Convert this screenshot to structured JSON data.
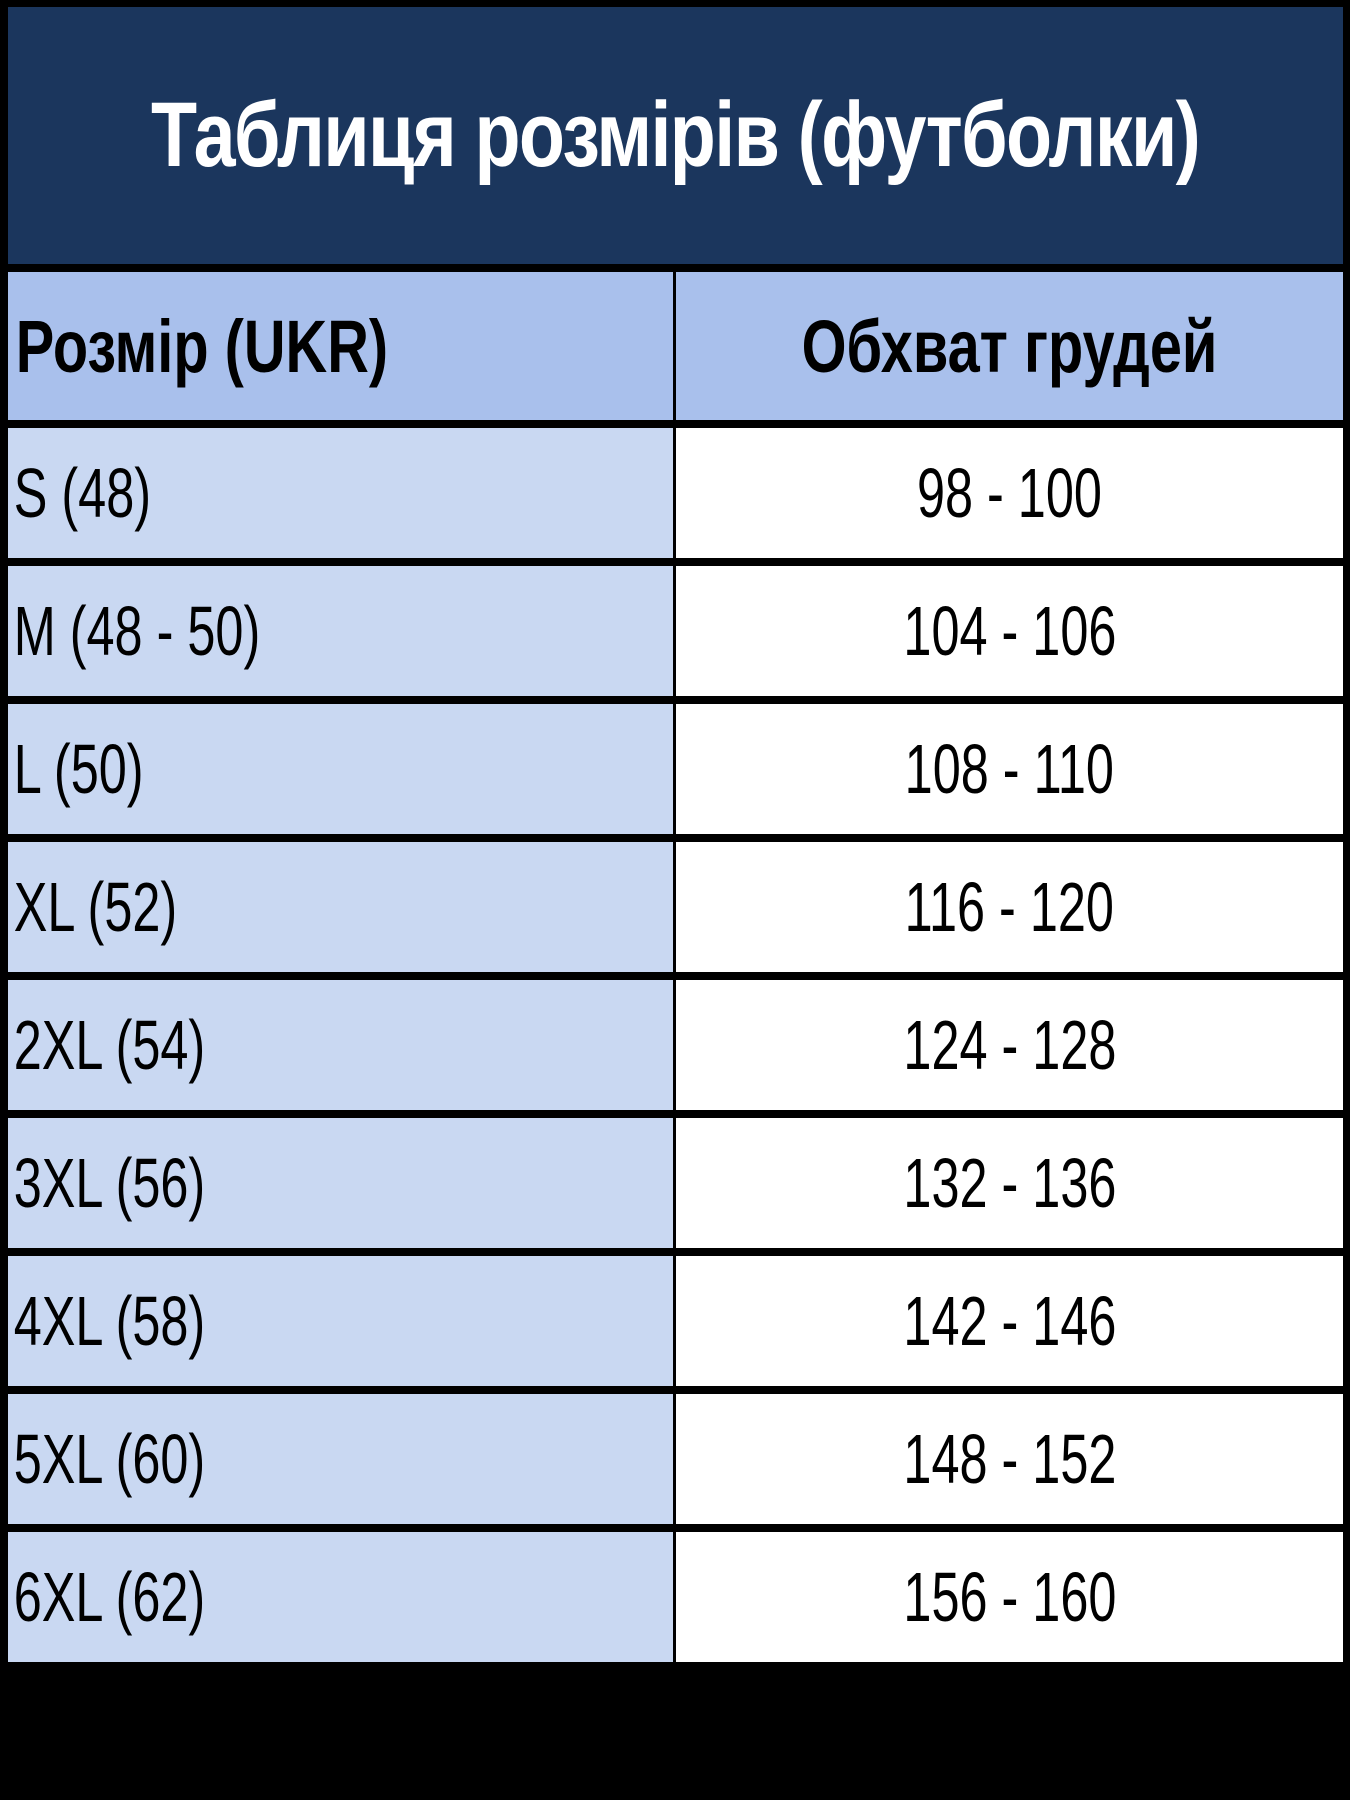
{
  "title": "Таблиця розмірів (футболки)",
  "colors": {
    "title_bg": "#1b365d",
    "header_bg": "#a9c0ec",
    "size_col_bg": "#c9d8f2",
    "value_col_bg": "#ffffff"
  },
  "columns": [
    "Розмір (UKR)",
    "Обхват грудей"
  ],
  "rows": [
    {
      "size": "S (48)",
      "chest": "98 - 100"
    },
    {
      "size": "M (48 - 50)",
      "chest": "104 - 106"
    },
    {
      "size": "L (50)",
      "chest": "108 - 110"
    },
    {
      "size": "XL (52)",
      "chest": "116 - 120"
    },
    {
      "size": "2XL (54)",
      "chest": "124 - 128"
    },
    {
      "size": "3XL (56)",
      "chest": "132 - 136"
    },
    {
      "size": "4XL (58)",
      "chest": "142 - 146"
    },
    {
      "size": "5XL (60)",
      "chest": "148 - 152"
    },
    {
      "size": "6XL (62)",
      "chest": "156 - 160"
    }
  ]
}
